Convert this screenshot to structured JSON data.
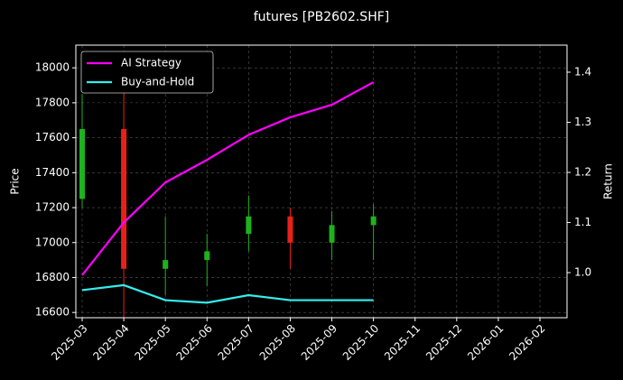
{
  "chart_data": {
    "type": "candlestick",
    "title": "futures [PB2602.SHF]",
    "y_label": "Price",
    "y2_label": "Return",
    "x": [
      "2025-03",
      "2025-04",
      "2025-05",
      "2025-06",
      "2025-07",
      "2025-08",
      "2025-09",
      "2025-10"
    ],
    "ohlc": {
      "open": [
        17250,
        17650,
        16850,
        16900,
        17050,
        17150,
        17000,
        17100
      ],
      "high": [
        17850,
        17900,
        17150,
        17050,
        17270,
        17200,
        17180,
        17220
      ],
      "low": [
        17200,
        16570,
        16700,
        16750,
        16950,
        16850,
        16900,
        16900
      ],
      "close": [
        17650,
        16850,
        16900,
        16950,
        17150,
        17000,
        17100,
        17150
      ],
      "up_color": "#1db31d",
      "down_color": "#e8201a"
    },
    "series": [
      {
        "name": "AI Strategy",
        "color": "#ff00ff",
        "axis": "y2",
        "values": [
          0.995,
          1.1,
          1.18,
          1.225,
          1.275,
          1.31,
          1.335,
          1.38
        ]
      },
      {
        "name": "Buy-and-Hold",
        "color": "#33eeee",
        "axis": "y2",
        "values": [
          0.965,
          0.975,
          0.945,
          0.94,
          0.955,
          0.945,
          0.945,
          0.945
        ]
      }
    ],
    "xlim": [
      "2025-03",
      "2026-02"
    ],
    "xticks": [
      "2025-03",
      "2025-04",
      "2025-05",
      "2025-06",
      "2025-07",
      "2025-08",
      "2025-09",
      "2025-10",
      "2025-11",
      "2025-12",
      "2026-01",
      "2026-02"
    ],
    "ylim": [
      16570,
      18130
    ],
    "yticks": [
      16600,
      16800,
      17000,
      17200,
      17400,
      17600,
      17800,
      18000
    ],
    "y2lim": [
      0.91,
      1.454
    ],
    "y2ticks": [
      {
        "value": 1,
        "label": "1.0"
      },
      {
        "value": 1.1,
        "label": "1.1"
      },
      {
        "value": 1.2,
        "label": "1.2"
      },
      {
        "value": 1.3,
        "label": "1.3"
      },
      {
        "value": 1.4,
        "label": "1.4"
      }
    ],
    "grid": true,
    "legend": "upper-left"
  }
}
